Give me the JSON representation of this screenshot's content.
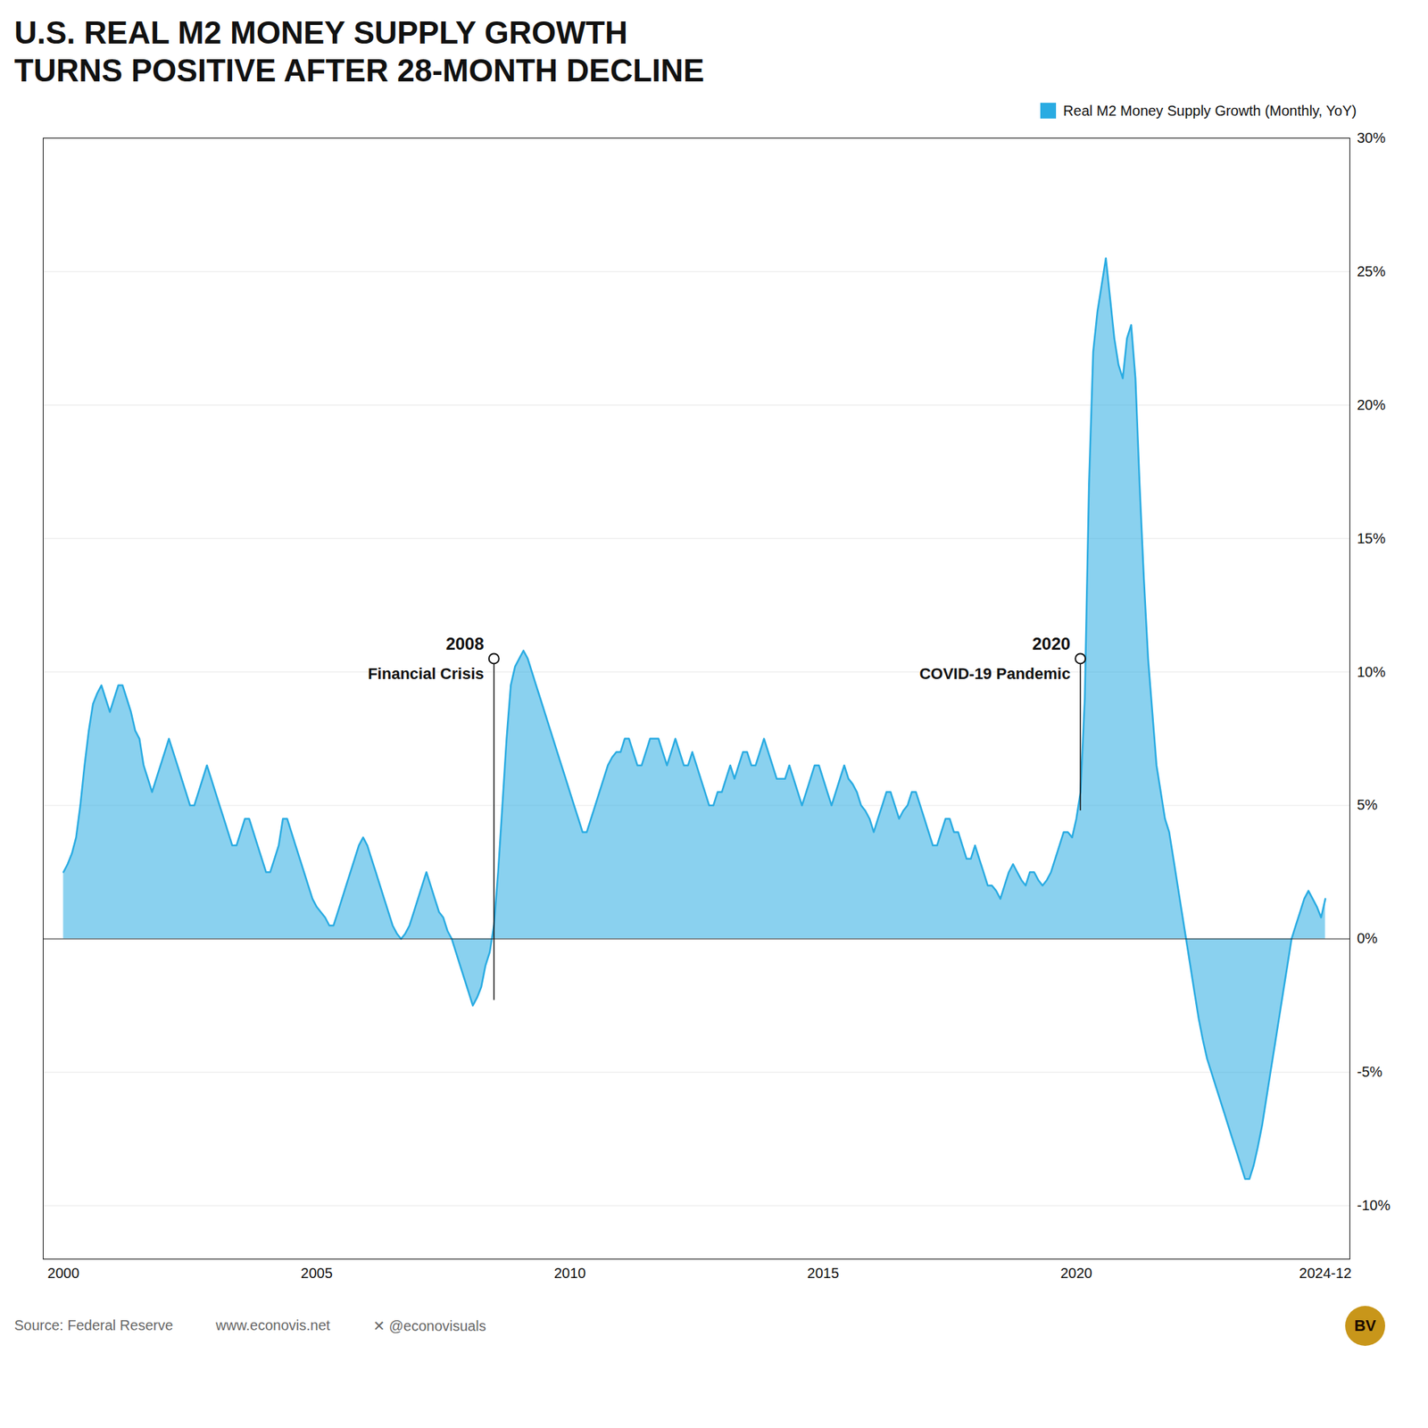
{
  "chart_data": {
    "type": "area",
    "title": "U.S. REAL M2 MONEY SUPPLY GROWTH",
    "subtitle": "TURNS POSITIVE AFTER 28-MONTH DECLINE",
    "x": [
      2000.0,
      2000.083,
      2000.167,
      2000.25,
      2000.333,
      2000.417,
      2000.5,
      2000.583,
      2000.667,
      2000.75,
      2000.833,
      2000.917,
      2001.0,
      2001.083,
      2001.167,
      2001.25,
      2001.333,
      2001.417,
      2001.5,
      2001.583,
      2001.667,
      2001.75,
      2001.833,
      2001.917,
      2002.0,
      2002.083,
      2002.167,
      2002.25,
      2002.333,
      2002.417,
      2002.5,
      2002.583,
      2002.667,
      2002.75,
      2002.833,
      2002.917,
      2003.0,
      2003.083,
      2003.167,
      2003.25,
      2003.333,
      2003.417,
      2003.5,
      2003.583,
      2003.667,
      2003.75,
      2003.833,
      2003.917,
      2004.0,
      2004.083,
      2004.167,
      2004.25,
      2004.333,
      2004.417,
      2004.5,
      2004.583,
      2004.667,
      2004.75,
      2004.833,
      2004.917,
      2005.0,
      2005.083,
      2005.167,
      2005.25,
      2005.333,
      2005.417,
      2005.5,
      2005.583,
      2005.667,
      2005.75,
      2005.833,
      2005.917,
      2006.0,
      2006.083,
      2006.167,
      2006.25,
      2006.333,
      2006.417,
      2006.5,
      2006.583,
      2006.667,
      2006.75,
      2006.833,
      2006.917,
      2007.0,
      2007.083,
      2007.167,
      2007.25,
      2007.333,
      2007.417,
      2007.5,
      2007.583,
      2007.667,
      2007.75,
      2007.833,
      2007.917,
      2008.0,
      2008.083,
      2008.167,
      2008.25,
      2008.333,
      2008.417,
      2008.5,
      2008.583,
      2008.667,
      2008.75,
      2008.833,
      2008.917,
      2009.0,
      2009.083,
      2009.167,
      2009.25,
      2009.333,
      2009.417,
      2009.5,
      2009.583,
      2009.667,
      2009.75,
      2009.833,
      2009.917,
      2010.0,
      2010.083,
      2010.167,
      2010.25,
      2010.333,
      2010.417,
      2010.5,
      2010.583,
      2010.667,
      2010.75,
      2010.833,
      2010.917,
      2011.0,
      2011.083,
      2011.167,
      2011.25,
      2011.333,
      2011.417,
      2011.5,
      2011.583,
      2011.667,
      2011.75,
      2011.833,
      2011.917,
      2012.0,
      2012.083,
      2012.167,
      2012.25,
      2012.333,
      2012.417,
      2012.5,
      2012.583,
      2012.667,
      2012.75,
      2012.833,
      2012.917,
      2013.0,
      2013.083,
      2013.167,
      2013.25,
      2013.333,
      2013.417,
      2013.5,
      2013.583,
      2013.667,
      2013.75,
      2013.833,
      2013.917,
      2014.0,
      2014.083,
      2014.167,
      2014.25,
      2014.333,
      2014.417,
      2014.5,
      2014.583,
      2014.667,
      2014.75,
      2014.833,
      2014.917,
      2015.0,
      2015.083,
      2015.167,
      2015.25,
      2015.333,
      2015.417,
      2015.5,
      2015.583,
      2015.667,
      2015.75,
      2015.833,
      2015.917,
      2016.0,
      2016.083,
      2016.167,
      2016.25,
      2016.333,
      2016.417,
      2016.5,
      2016.583,
      2016.667,
      2016.75,
      2016.833,
      2016.917,
      2017.0,
      2017.083,
      2017.167,
      2017.25,
      2017.333,
      2017.417,
      2017.5,
      2017.583,
      2017.667,
      2017.75,
      2017.833,
      2017.917,
      2018.0,
      2018.083,
      2018.167,
      2018.25,
      2018.333,
      2018.417,
      2018.5,
      2018.583,
      2018.667,
      2018.75,
      2018.833,
      2018.917,
      2019.0,
      2019.083,
      2019.167,
      2019.25,
      2019.333,
      2019.417,
      2019.5,
      2019.583,
      2019.667,
      2019.75,
      2019.833,
      2019.917,
      2020.0,
      2020.083,
      2020.167,
      2020.25,
      2020.333,
      2020.417,
      2020.5,
      2020.583,
      2020.667,
      2020.75,
      2020.833,
      2020.917,
      2021.0,
      2021.083,
      2021.167,
      2021.25,
      2021.333,
      2021.417,
      2021.5,
      2021.583,
      2021.667,
      2021.75,
      2021.833,
      2021.917,
      2022.0,
      2022.083,
      2022.167,
      2022.25,
      2022.333,
      2022.417,
      2022.5,
      2022.583,
      2022.667,
      2022.75,
      2022.833,
      2022.917,
      2023.0,
      2023.083,
      2023.167,
      2023.25,
      2023.333,
      2023.417,
      2023.5,
      2023.583,
      2023.667,
      2023.75,
      2023.833,
      2023.917,
      2024.0,
      2024.083,
      2024.167,
      2024.25,
      2024.333,
      2024.417,
      2024.5,
      2024.583,
      2024.667,
      2024.75,
      2024.833,
      2024.917
    ],
    "series": [
      {
        "name": "Real M2 Money Supply Growth (Monthly, YoY)",
        "color": "#29abe2",
        "values": [
          2.5,
          2.8,
          3.2,
          3.8,
          5.0,
          6.5,
          7.8,
          8.8,
          9.2,
          9.5,
          9.0,
          8.5,
          9.0,
          9.5,
          9.5,
          9.0,
          8.5,
          7.8,
          7.5,
          6.5,
          6.0,
          5.5,
          6.0,
          6.5,
          7.0,
          7.5,
          7.0,
          6.5,
          6.0,
          5.5,
          5.0,
          5.0,
          5.5,
          6.0,
          6.5,
          6.0,
          5.5,
          5.0,
          4.5,
          4.0,
          3.5,
          3.5,
          4.0,
          4.5,
          4.5,
          4.0,
          3.5,
          3.0,
          2.5,
          2.5,
          3.0,
          3.5,
          4.5,
          4.5,
          4.0,
          3.5,
          3.0,
          2.5,
          2.0,
          1.5,
          1.2,
          1.0,
          0.8,
          0.5,
          0.5,
          1.0,
          1.5,
          2.0,
          2.5,
          3.0,
          3.5,
          3.8,
          3.5,
          3.0,
          2.5,
          2.0,
          1.5,
          1.0,
          0.5,
          0.2,
          0.0,
          0.2,
          0.5,
          1.0,
          1.5,
          2.0,
          2.5,
          2.0,
          1.5,
          1.0,
          0.8,
          0.3,
          0.0,
          -0.5,
          -1.0,
          -1.5,
          -2.0,
          -2.5,
          -2.2,
          -1.8,
          -1.0,
          -0.5,
          0.5,
          2.5,
          5.0,
          7.5,
          9.5,
          10.2,
          10.5,
          10.8,
          10.5,
          10.0,
          9.5,
          9.0,
          8.5,
          8.0,
          7.5,
          7.0,
          6.5,
          6.0,
          5.5,
          5.0,
          4.5,
          4.0,
          4.0,
          4.5,
          5.0,
          5.5,
          6.0,
          6.5,
          6.8,
          7.0,
          7.0,
          7.5,
          7.5,
          7.0,
          6.5,
          6.5,
          7.0,
          7.5,
          7.5,
          7.5,
          7.0,
          6.5,
          7.0,
          7.5,
          7.0,
          6.5,
          6.5,
          7.0,
          6.5,
          6.0,
          5.5,
          5.0,
          5.0,
          5.5,
          5.5,
          6.0,
          6.5,
          6.0,
          6.5,
          7.0,
          7.0,
          6.5,
          6.5,
          7.0,
          7.5,
          7.0,
          6.5,
          6.0,
          6.0,
          6.0,
          6.5,
          6.0,
          5.5,
          5.0,
          5.5,
          6.0,
          6.5,
          6.5,
          6.0,
          5.5,
          5.0,
          5.5,
          6.0,
          6.5,
          6.0,
          5.8,
          5.5,
          5.0,
          4.8,
          4.5,
          4.0,
          4.5,
          5.0,
          5.5,
          5.5,
          5.0,
          4.5,
          4.8,
          5.0,
          5.5,
          5.5,
          5.0,
          4.5,
          4.0,
          3.5,
          3.5,
          4.0,
          4.5,
          4.5,
          4.0,
          4.0,
          3.5,
          3.0,
          3.0,
          3.5,
          3.0,
          2.5,
          2.0,
          2.0,
          1.8,
          1.5,
          2.0,
          2.5,
          2.8,
          2.5,
          2.2,
          2.0,
          2.5,
          2.5,
          2.2,
          2.0,
          2.2,
          2.5,
          3.0,
          3.5,
          4.0,
          4.0,
          3.8,
          4.5,
          5.5,
          9.0,
          17.0,
          22.0,
          23.5,
          24.5,
          25.5,
          24.0,
          22.5,
          21.5,
          21.0,
          22.5,
          23.0,
          21.0,
          17.0,
          13.5,
          10.5,
          8.5,
          6.5,
          5.5,
          4.5,
          4.0,
          3.0,
          2.0,
          1.0,
          0.0,
          -1.0,
          -2.0,
          -3.0,
          -3.8,
          -4.5,
          -5.0,
          -5.5,
          -6.0,
          -6.5,
          -7.0,
          -7.5,
          -8.0,
          -8.5,
          -9.0,
          -9.0,
          -8.5,
          -7.8,
          -7.0,
          -6.0,
          -5.0,
          -4.0,
          -3.0,
          -2.0,
          -1.0,
          0.0,
          0.5,
          1.0,
          1.5,
          1.8,
          1.5,
          1.2,
          0.8,
          1.5
        ]
      }
    ],
    "xlim": [
      1999.6,
      2025.4
    ],
    "xticks": [
      2000,
      2005,
      2010,
      2015,
      2020,
      {
        "value": 2024.917,
        "label": "2024-12"
      }
    ],
    "ylim": [
      -12,
      30
    ],
    "yticks": [
      {
        "value": -10,
        "label": "-10%"
      },
      {
        "value": -5,
        "label": "-5%"
      },
      {
        "value": 0,
        "label": "0%"
      },
      {
        "value": 5,
        "label": "5%"
      },
      {
        "value": 10,
        "label": "10%"
      },
      {
        "value": 15,
        "label": "15%"
      },
      {
        "value": 20,
        "label": "20%"
      },
      {
        "value": 25,
        "label": "25%"
      },
      {
        "value": 30,
        "label": "30%"
      }
    ],
    "grid": true,
    "legend": "top-right",
    "annotations": [
      {
        "x": 2008.5,
        "y": 10.5,
        "y_start": -2.3,
        "label": "2008",
        "text": "Financial Crisis"
      },
      {
        "x": 2020.08,
        "y": 10.5,
        "y_start": 4.8,
        "label": "2020",
        "text": "COVID-19 Pandemic"
      }
    ],
    "caption": "Source: Federal Reserve",
    "footer": [
      "www.econovis.net",
      "✕ @econovisuals",
      "BV"
    ]
  }
}
